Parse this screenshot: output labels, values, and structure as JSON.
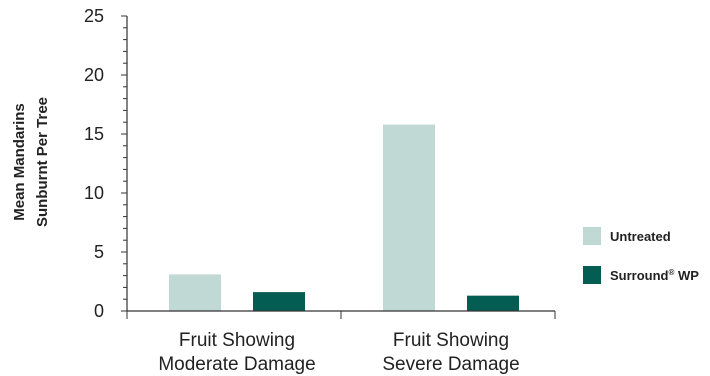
{
  "chart_data": {
    "type": "bar",
    "categories": [
      [
        "Fruit Showing",
        "Moderate Damage"
      ],
      [
        "Fruit Showing",
        "Severe Damage"
      ]
    ],
    "series": [
      {
        "name": "Untreated",
        "color": "#c1d9d5",
        "values": [
          3.1,
          15.8
        ]
      },
      {
        "name": "Surround® WP",
        "color": "#035d52",
        "values": [
          1.6,
          1.3
        ]
      }
    ],
    "ylabel": [
      "Mean Mandarins",
      "Sunburnt Per Tree"
    ],
    "xlabel": "",
    "ylim": [
      0,
      25
    ],
    "yticks": [
      0,
      5,
      10,
      15,
      20,
      25
    ],
    "grid": false,
    "legend": "right"
  }
}
